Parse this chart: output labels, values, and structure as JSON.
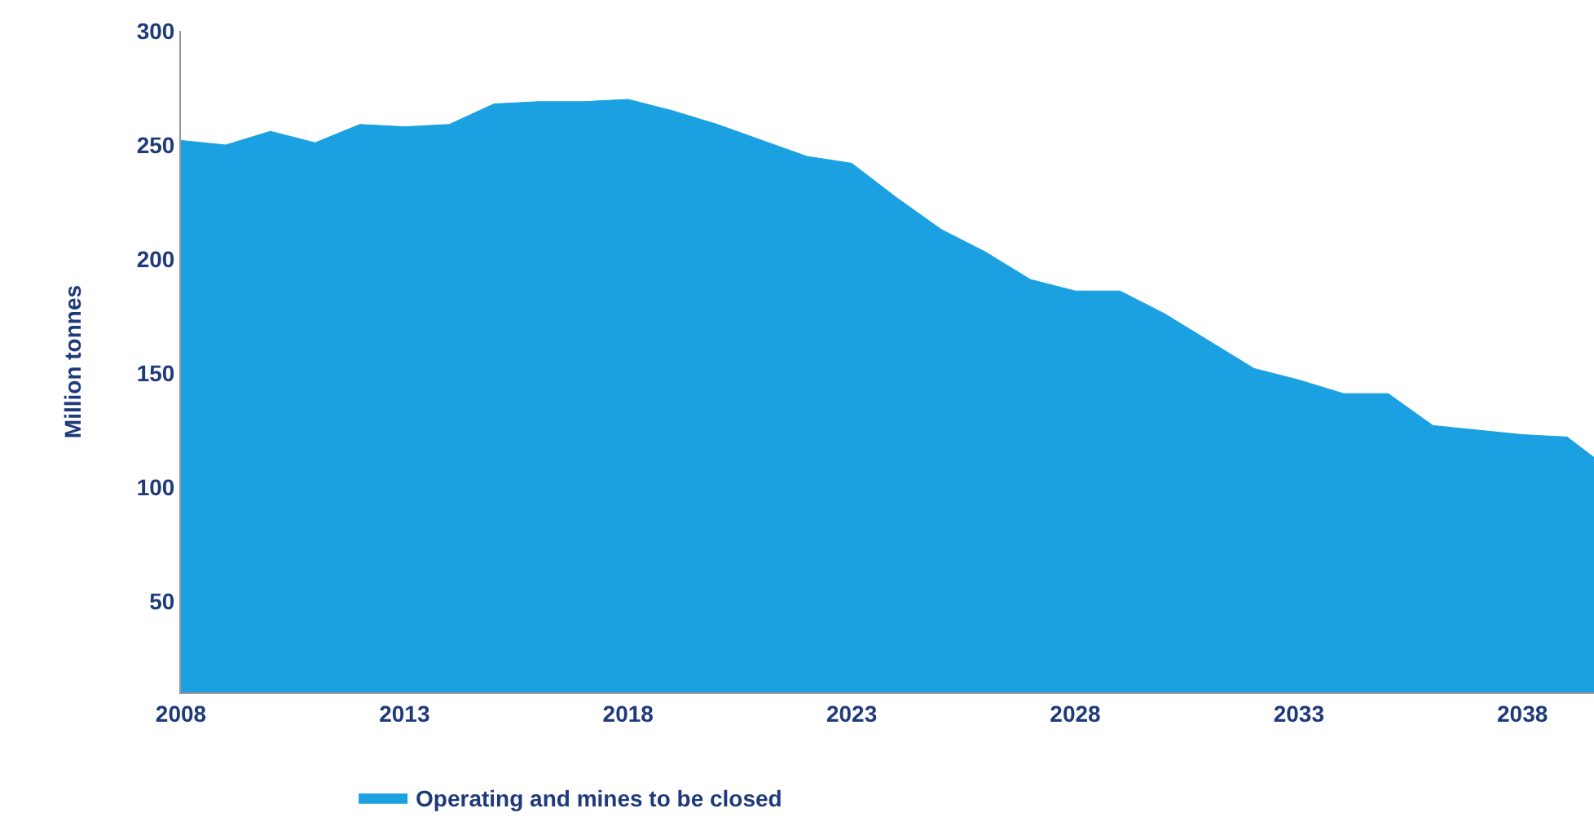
{
  "chart_data": {
    "type": "area",
    "ylabel": "Million tonnes",
    "x": [
      2008,
      2009,
      2010,
      2011,
      2012,
      2013,
      2014,
      2015,
      2016,
      2017,
      2018,
      2019,
      2020,
      2021,
      2022,
      2023,
      2024,
      2025,
      2026,
      2027,
      2028,
      2029,
      2030,
      2031,
      2032,
      2033,
      2034,
      2035,
      2036,
      2037,
      2038,
      2039,
      2039.6
    ],
    "series": [
      {
        "name": "Operating and mines to be closed",
        "color": "#1ba1e2",
        "values": [
          252,
          250,
          256,
          251,
          259,
          258,
          259,
          268,
          269,
          269,
          270,
          265,
          259,
          252,
          245,
          242,
          227,
          213,
          203,
          191,
          186,
          186,
          176,
          164,
          152,
          147,
          141,
          141,
          127,
          125,
          123,
          122,
          113
        ]
      }
    ],
    "xlim": [
      2008,
      2039.6
    ],
    "ylim": [
      10,
      300
    ],
    "xticks": [
      2008,
      2013,
      2018,
      2023,
      2028,
      2033,
      2038
    ],
    "yticks": [
      50,
      100,
      150,
      200,
      250,
      300
    ],
    "legend": "bottom"
  }
}
